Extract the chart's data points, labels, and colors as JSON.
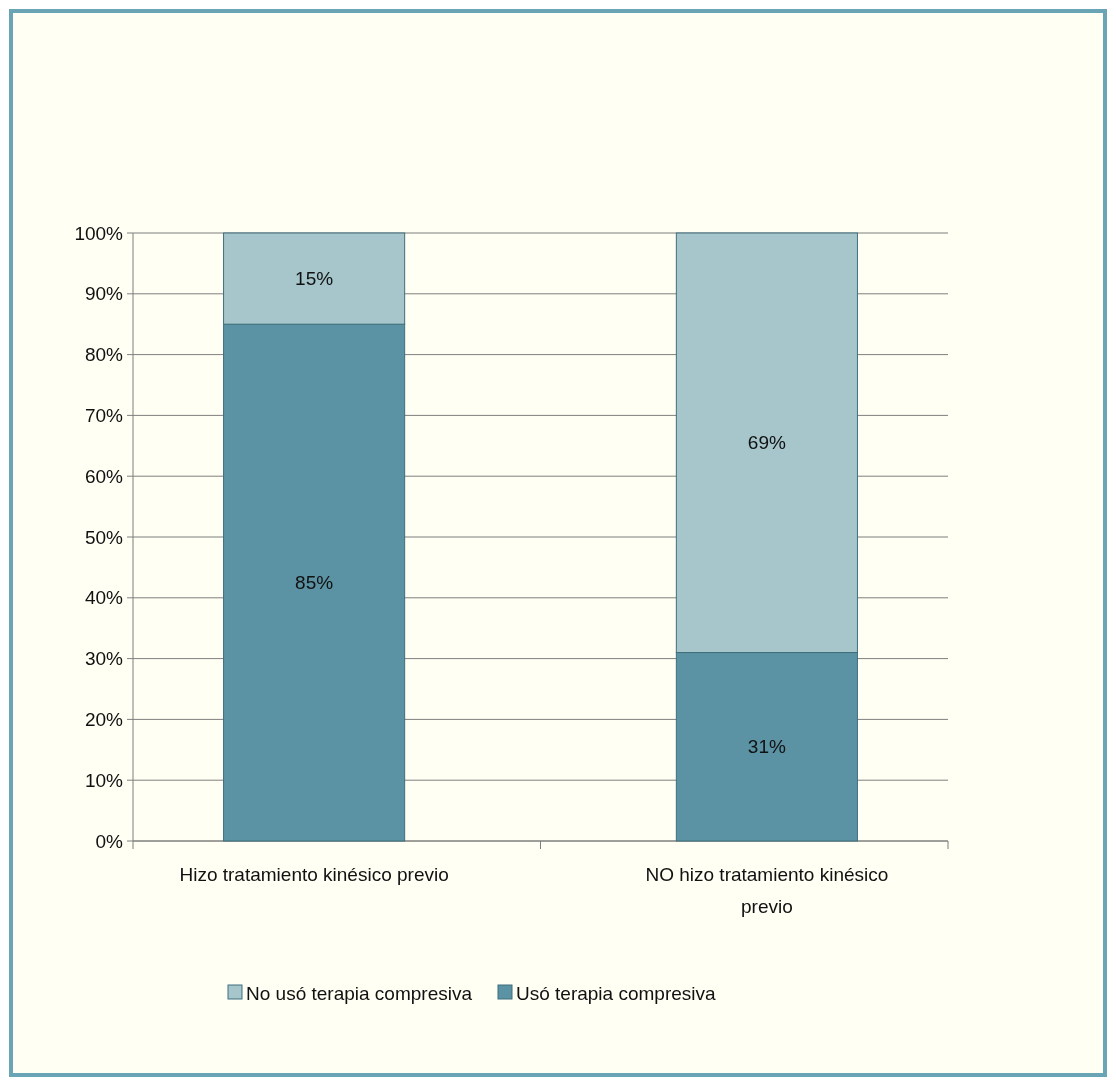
{
  "chart_data": {
    "type": "bar",
    "stacked": true,
    "categories": [
      "Hizo tratamiento kinésico previo",
      "NO hizo tratamiento kinésico previo"
    ],
    "series": [
      {
        "name": "Usó terapia compresiva",
        "color": "#5b93a4",
        "values": [
          85,
          31
        ],
        "value_labels": [
          "85%",
          "31%"
        ]
      },
      {
        "name": "No usó terapia compresiva",
        "color": "#a6c6cc",
        "values": [
          15,
          69
        ],
        "value_labels": [
          "15%",
          "69%"
        ]
      }
    ],
    "ylim": [
      0,
      100
    ],
    "yticks": [
      {
        "value": 0,
        "label": "0%"
      },
      {
        "value": 10,
        "label": "10%"
      },
      {
        "value": 20,
        "label": "20%"
      },
      {
        "value": 30,
        "label": "30%"
      },
      {
        "value": 40,
        "label": "40%"
      },
      {
        "value": 50,
        "label": "50%"
      },
      {
        "value": 60,
        "label": "60%"
      },
      {
        "value": 70,
        "label": "70%"
      },
      {
        "value": 80,
        "label": "80%"
      },
      {
        "value": 90,
        "label": "90%"
      },
      {
        "value": 100,
        "label": "100%"
      }
    ],
    "grid": "y",
    "legend": "bottom"
  }
}
